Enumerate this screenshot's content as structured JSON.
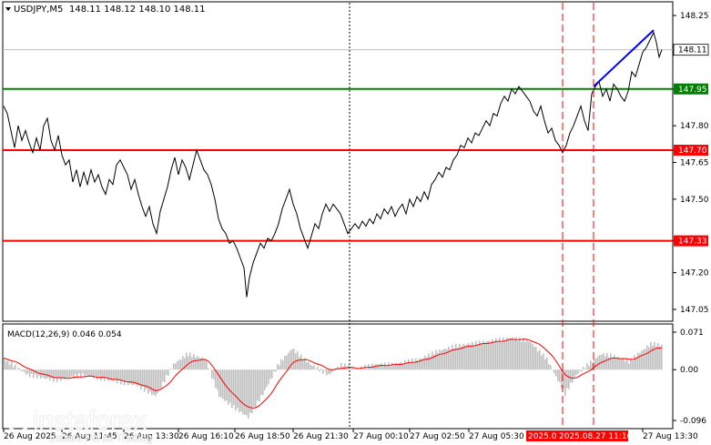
{
  "header": {
    "symbol_label": "USDJPY,M5",
    "ohlc": "148.11 148.12 148.10 148.11",
    "dropdown_icon": "triangle-down-icon"
  },
  "price_axis": {
    "ticks": [
      "148.25",
      "148.11",
      "147.95",
      "147.80",
      "147.70",
      "147.65",
      "147.50",
      "147.33",
      "147.20",
      "147.05"
    ],
    "current_price": "148.11"
  },
  "levels": [
    {
      "label": "147.95",
      "color": "#008000"
    },
    {
      "label": "147.70",
      "color": "#ff0000"
    },
    {
      "label": "147.33",
      "color": "#ff0000"
    }
  ],
  "time_axis": {
    "labels": [
      "26 Aug 2025",
      "26 Aug 11:45",
      "26 Aug 13:30",
      "26 Aug 16:10",
      "26 Aug 18:50",
      "26 Aug 21:30",
      "27 Aug 00:10",
      "27 Aug 02:50",
      "27 Aug 05:30",
      "2025.08.27 11:10",
      "27 Aug 13:30"
    ],
    "highlight_left": "2025.08",
    "highlight_right": "2025.08.27 11:10",
    "highlight_color": "#ff0000"
  },
  "macd": {
    "label": "MACD(12,26,9) 0.046 0.054",
    "ticks": [
      "0.071",
      "0.00",
      "-0.096"
    ],
    "histogram_color": "#c0c0c0",
    "signal_color": "#ff0000"
  },
  "colors": {
    "price_line": "#000000",
    "trend_line": "#0000ff",
    "vline": "#ff0000",
    "grid_dotted": "#000000"
  },
  "watermark": {
    "brand": "instaforex",
    "tagline": "Instant Forex Trading"
  }
}
